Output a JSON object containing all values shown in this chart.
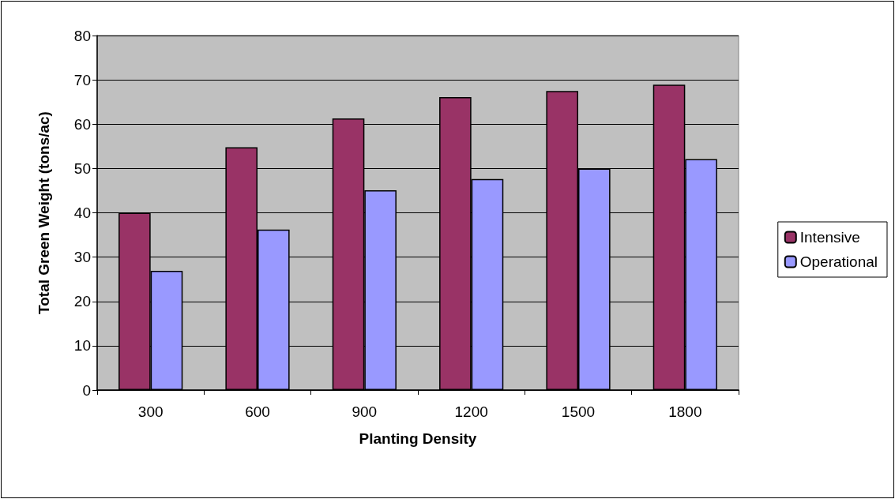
{
  "chart_data": {
    "type": "bar",
    "xlabel": "Planting Density",
    "ylabel": "Total Green Weight (tons/ac)",
    "categories": [
      "300",
      "600",
      "900",
      "1200",
      "1500",
      "1800"
    ],
    "series": [
      {
        "name": "Intensive",
        "color": "#993366",
        "values": [
          40,
          54.8,
          61.3,
          66.1,
          67.5,
          68.9
        ]
      },
      {
        "name": "Operational",
        "color": "#9999ff",
        "values": [
          26.9,
          36.2,
          45.1,
          47.6,
          50,
          52.1
        ]
      }
    ],
    "ylim": [
      0,
      80
    ],
    "yticks": [
      0,
      10,
      20,
      30,
      40,
      50,
      60,
      70,
      80
    ],
    "grid": "y",
    "legend": "right"
  }
}
